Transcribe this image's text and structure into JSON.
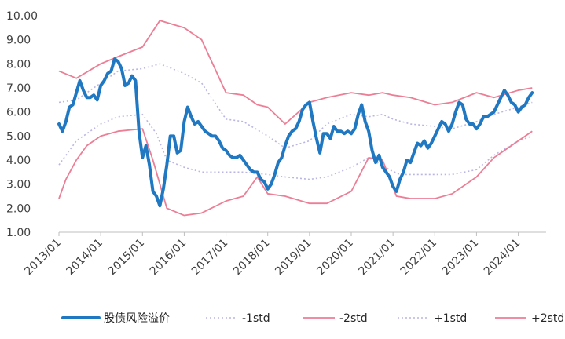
{
  "chart_data": {
    "type": "line",
    "title": "",
    "xlabel": "",
    "ylabel": "",
    "ylim": [
      1.0,
      10.0
    ],
    "xlim": [
      "2013-01",
      "2024-09"
    ],
    "grid": false,
    "legend_position": "bottom",
    "y_ticks": [
      "1.00",
      "2.00",
      "3.00",
      "4.00",
      "5.00",
      "6.00",
      "7.00",
      "8.00",
      "9.00",
      "10.00"
    ],
    "x_ticks": [
      {
        "date": "2013-01",
        "label": "2013/01"
      },
      {
        "date": "2014-01",
        "label": "2014/01"
      },
      {
        "date": "2015-01",
        "label": "2015/01"
      },
      {
        "date": "2016-01",
        "label": "2016/01"
      },
      {
        "date": "2017-01",
        "label": "2017/01"
      },
      {
        "date": "2018-01",
        "label": "2018/01"
      },
      {
        "date": "2019-01",
        "label": "2019/01"
      },
      {
        "date": "2020-01",
        "label": "2020/01"
      },
      {
        "date": "2021-01",
        "label": "2021/01"
      },
      {
        "date": "2022-01",
        "label": "2022/01"
      },
      {
        "date": "2023-01",
        "label": "2023/01"
      },
      {
        "date": "2024-01",
        "label": "2024/01"
      }
    ],
    "series": [
      {
        "name": "股债风险溢价",
        "color": "#1f78c1",
        "style": "solid-thick",
        "points": [
          [
            "2013-01",
            5.5
          ],
          [
            "2013-02",
            5.2
          ],
          [
            "2013-03",
            5.6
          ],
          [
            "2013-04",
            6.2
          ],
          [
            "2013-05",
            6.3
          ],
          [
            "2013-06",
            6.8
          ],
          [
            "2013-07",
            7.3
          ],
          [
            "2013-08",
            6.9
          ],
          [
            "2013-09",
            6.6
          ],
          [
            "2013-10",
            6.6
          ],
          [
            "2013-11",
            6.7
          ],
          [
            "2013-12",
            6.5
          ],
          [
            "2014-01",
            7.1
          ],
          [
            "2014-02",
            7.3
          ],
          [
            "2014-03",
            7.6
          ],
          [
            "2014-04",
            7.7
          ],
          [
            "2014-05",
            8.2
          ],
          [
            "2014-06",
            8.1
          ],
          [
            "2014-07",
            7.8
          ],
          [
            "2014-08",
            7.1
          ],
          [
            "2014-09",
            7.2
          ],
          [
            "2014-10",
            7.5
          ],
          [
            "2014-11",
            7.3
          ],
          [
            "2014-12",
            5.2
          ],
          [
            "2015-01",
            4.1
          ],
          [
            "2015-02",
            4.6
          ],
          [
            "2015-03",
            3.8
          ],
          [
            "2015-04",
            2.7
          ],
          [
            "2015-05",
            2.5
          ],
          [
            "2015-06",
            2.1
          ],
          [
            "2015-07",
            2.8
          ],
          [
            "2015-08",
            3.8
          ],
          [
            "2015-09",
            5.0
          ],
          [
            "2015-10",
            5.0
          ],
          [
            "2015-11",
            4.3
          ],
          [
            "2015-12",
            4.4
          ],
          [
            "2016-01",
            5.6
          ],
          [
            "2016-02",
            6.2
          ],
          [
            "2016-03",
            5.8
          ],
          [
            "2016-04",
            5.5
          ],
          [
            "2016-05",
            5.6
          ],
          [
            "2016-06",
            5.4
          ],
          [
            "2016-07",
            5.2
          ],
          [
            "2016-08",
            5.1
          ],
          [
            "2016-09",
            5.0
          ],
          [
            "2016-10",
            5.0
          ],
          [
            "2016-11",
            4.8
          ],
          [
            "2016-12",
            4.5
          ],
          [
            "2017-01",
            4.4
          ],
          [
            "2017-02",
            4.2
          ],
          [
            "2017-03",
            4.1
          ],
          [
            "2017-04",
            4.1
          ],
          [
            "2017-05",
            4.2
          ],
          [
            "2017-06",
            4.0
          ],
          [
            "2017-07",
            3.8
          ],
          [
            "2017-08",
            3.6
          ],
          [
            "2017-09",
            3.5
          ],
          [
            "2017-10",
            3.5
          ],
          [
            "2017-11",
            3.2
          ],
          [
            "2017-12",
            3.1
          ],
          [
            "2018-01",
            2.8
          ],
          [
            "2018-02",
            3.0
          ],
          [
            "2018-03",
            3.4
          ],
          [
            "2018-04",
            3.9
          ],
          [
            "2018-05",
            4.1
          ],
          [
            "2018-06",
            4.6
          ],
          [
            "2018-07",
            5.0
          ],
          [
            "2018-08",
            5.2
          ],
          [
            "2018-09",
            5.3
          ],
          [
            "2018-10",
            5.6
          ],
          [
            "2018-11",
            6.1
          ],
          [
            "2018-12",
            6.3
          ],
          [
            "2019-01",
            6.4
          ],
          [
            "2019-02",
            5.6
          ],
          [
            "2019-03",
            4.9
          ],
          [
            "2019-04",
            4.3
          ],
          [
            "2019-05",
            5.1
          ],
          [
            "2019-06",
            5.1
          ],
          [
            "2019-07",
            4.9
          ],
          [
            "2019-08",
            5.4
          ],
          [
            "2019-09",
            5.2
          ],
          [
            "2019-10",
            5.2
          ],
          [
            "2019-11",
            5.1
          ],
          [
            "2019-12",
            5.2
          ],
          [
            "2020-01",
            5.1
          ],
          [
            "2020-02",
            5.3
          ],
          [
            "2020-03",
            5.9
          ],
          [
            "2020-04",
            6.3
          ],
          [
            "2020-05",
            5.6
          ],
          [
            "2020-06",
            5.2
          ],
          [
            "2020-07",
            4.4
          ],
          [
            "2020-08",
            3.9
          ],
          [
            "2020-09",
            4.2
          ],
          [
            "2020-10",
            3.7
          ],
          [
            "2020-11",
            3.5
          ],
          [
            "2020-12",
            3.3
          ],
          [
            "2021-01",
            2.9
          ],
          [
            "2021-02",
            2.7
          ],
          [
            "2021-03",
            3.2
          ],
          [
            "2021-04",
            3.5
          ],
          [
            "2021-05",
            4.0
          ],
          [
            "2021-06",
            3.9
          ],
          [
            "2021-07",
            4.3
          ],
          [
            "2021-08",
            4.7
          ],
          [
            "2021-09",
            4.6
          ],
          [
            "2021-10",
            4.8
          ],
          [
            "2021-11",
            4.5
          ],
          [
            "2021-12",
            4.7
          ],
          [
            "2022-01",
            5.0
          ],
          [
            "2022-02",
            5.3
          ],
          [
            "2022-03",
            5.6
          ],
          [
            "2022-04",
            5.5
          ],
          [
            "2022-05",
            5.2
          ],
          [
            "2022-06",
            5.5
          ],
          [
            "2022-07",
            6.0
          ],
          [
            "2022-08",
            6.4
          ],
          [
            "2022-09",
            6.3
          ],
          [
            "2022-10",
            5.7
          ],
          [
            "2022-11",
            5.5
          ],
          [
            "2022-12",
            5.5
          ],
          [
            "2023-01",
            5.3
          ],
          [
            "2023-02",
            5.5
          ],
          [
            "2023-03",
            5.8
          ],
          [
            "2023-04",
            5.8
          ],
          [
            "2023-05",
            5.9
          ],
          [
            "2023-06",
            6.0
          ],
          [
            "2023-07",
            6.3
          ],
          [
            "2023-08",
            6.6
          ],
          [
            "2023-09",
            6.9
          ],
          [
            "2023-10",
            6.7
          ],
          [
            "2023-11",
            6.4
          ],
          [
            "2023-12",
            6.3
          ],
          [
            "2024-01",
            6.0
          ],
          [
            "2024-02",
            6.2
          ],
          [
            "2024-03",
            6.3
          ],
          [
            "2024-04",
            6.6
          ],
          [
            "2024-05",
            6.8
          ]
        ]
      },
      {
        "name": "-1std",
        "color": "#b9b6e4",
        "style": "dotted",
        "points": [
          [
            "2013-01",
            3.8
          ],
          [
            "2013-06",
            4.8
          ],
          [
            "2014-01",
            5.5
          ],
          [
            "2014-06",
            5.8
          ],
          [
            "2015-01",
            5.9
          ],
          [
            "2015-05",
            5.1
          ],
          [
            "2015-08",
            4.0
          ],
          [
            "2016-01",
            3.7
          ],
          [
            "2016-06",
            3.5
          ],
          [
            "2017-01",
            3.5
          ],
          [
            "2017-06",
            3.5
          ],
          [
            "2018-01",
            3.4
          ],
          [
            "2018-06",
            3.3
          ],
          [
            "2019-01",
            3.2
          ],
          [
            "2019-06",
            3.3
          ],
          [
            "2020-01",
            3.7
          ],
          [
            "2020-06",
            4.1
          ],
          [
            "2020-12",
            3.6
          ],
          [
            "2021-03",
            3.4
          ],
          [
            "2021-06",
            3.4
          ],
          [
            "2022-01",
            3.4
          ],
          [
            "2022-06",
            3.4
          ],
          [
            "2023-01",
            3.6
          ],
          [
            "2023-06",
            4.2
          ],
          [
            "2024-01",
            4.8
          ],
          [
            "2024-05",
            5.0
          ]
        ]
      },
      {
        "name": "-2std",
        "color": "#ec7e95",
        "style": "solid",
        "points": [
          [
            "2013-01",
            2.4
          ],
          [
            "2013-03",
            3.2
          ],
          [
            "2013-06",
            4.0
          ],
          [
            "2013-09",
            4.6
          ],
          [
            "2014-01",
            5.0
          ],
          [
            "2014-06",
            5.2
          ],
          [
            "2015-01",
            5.3
          ],
          [
            "2015-04",
            4.0
          ],
          [
            "2015-08",
            2.0
          ],
          [
            "2016-01",
            1.7
          ],
          [
            "2016-06",
            1.8
          ],
          [
            "2017-01",
            2.3
          ],
          [
            "2017-06",
            2.5
          ],
          [
            "2017-10",
            3.3
          ],
          [
            "2018-01",
            2.6
          ],
          [
            "2018-06",
            2.5
          ],
          [
            "2019-01",
            2.2
          ],
          [
            "2019-06",
            2.2
          ],
          [
            "2020-01",
            2.7
          ],
          [
            "2020-06",
            4.1
          ],
          [
            "2020-10",
            4.0
          ],
          [
            "2021-02",
            2.5
          ],
          [
            "2021-06",
            2.4
          ],
          [
            "2022-01",
            2.4
          ],
          [
            "2022-06",
            2.6
          ],
          [
            "2023-01",
            3.3
          ],
          [
            "2023-06",
            4.1
          ],
          [
            "2024-01",
            4.8
          ],
          [
            "2024-05",
            5.2
          ]
        ]
      },
      {
        "name": "+1std",
        "color": "#b9b6e4",
        "style": "dotted",
        "points": [
          [
            "2013-01",
            6.4
          ],
          [
            "2013-06",
            6.5
          ],
          [
            "2014-01",
            7.2
          ],
          [
            "2014-06",
            7.7
          ],
          [
            "2015-01",
            7.8
          ],
          [
            "2015-06",
            8.0
          ],
          [
            "2016-01",
            7.6
          ],
          [
            "2016-06",
            7.2
          ],
          [
            "2017-01",
            5.7
          ],
          [
            "2017-06",
            5.6
          ],
          [
            "2018-01",
            5.0
          ],
          [
            "2018-06",
            4.5
          ],
          [
            "2019-01",
            4.8
          ],
          [
            "2019-06",
            5.5
          ],
          [
            "2020-01",
            5.9
          ],
          [
            "2020-06",
            5.8
          ],
          [
            "2020-10",
            5.9
          ],
          [
            "2021-01",
            5.7
          ],
          [
            "2021-06",
            5.5
          ],
          [
            "2022-01",
            5.4
          ],
          [
            "2022-06",
            5.3
          ],
          [
            "2023-01",
            5.6
          ],
          [
            "2023-06",
            5.9
          ],
          [
            "2024-01",
            6.2
          ],
          [
            "2024-05",
            6.4
          ]
        ]
      },
      {
        "name": "+2std",
        "color": "#ec7e95",
        "style": "solid",
        "points": [
          [
            "2013-01",
            7.7
          ],
          [
            "2013-06",
            7.4
          ],
          [
            "2014-01",
            8.0
          ],
          [
            "2014-06",
            8.3
          ],
          [
            "2015-01",
            8.7
          ],
          [
            "2015-06",
            9.8
          ],
          [
            "2016-01",
            9.5
          ],
          [
            "2016-06",
            9.0
          ],
          [
            "2017-01",
            6.8
          ],
          [
            "2017-06",
            6.7
          ],
          [
            "2017-10",
            6.3
          ],
          [
            "2018-01",
            6.2
          ],
          [
            "2018-06",
            5.5
          ],
          [
            "2019-01",
            6.4
          ],
          [
            "2019-06",
            6.6
          ],
          [
            "2020-01",
            6.8
          ],
          [
            "2020-06",
            6.7
          ],
          [
            "2020-10",
            6.8
          ],
          [
            "2021-01",
            6.7
          ],
          [
            "2021-06",
            6.6
          ],
          [
            "2022-01",
            6.3
          ],
          [
            "2022-06",
            6.4
          ],
          [
            "2023-01",
            6.8
          ],
          [
            "2023-06",
            6.6
          ],
          [
            "2024-01",
            6.9
          ],
          [
            "2024-05",
            7.0
          ]
        ]
      }
    ]
  }
}
